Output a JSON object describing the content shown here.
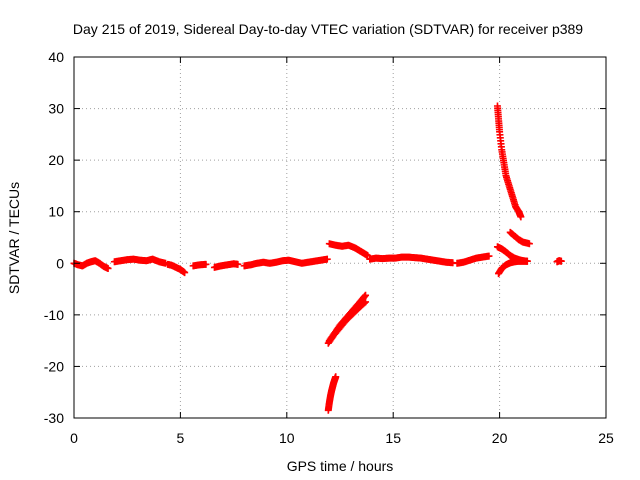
{
  "chart_data": {
    "type": "scatter",
    "title": "Day 215 of 2019, Sidereal Day-to-day VTEC variation (SDTVAR) for receiver p389",
    "xlabel": "GPS time / hours",
    "ylabel": "SDTVAR / TECUs",
    "xlim": [
      0,
      25
    ],
    "ylim": [
      -30,
      40
    ],
    "x_ticks": [
      0,
      5,
      10,
      15,
      20,
      25
    ],
    "y_ticks": [
      -30,
      -20,
      -10,
      0,
      10,
      20,
      30,
      40
    ],
    "grid": true,
    "marker": "+",
    "marker_color": "#ff0000",
    "series": [
      {
        "name": "SDTVAR",
        "segments": [
          {
            "x": [
              0.0,
              0.2,
              0.4,
              0.6,
              0.8,
              1.0,
              1.2,
              1.4,
              1.6
            ],
            "y": [
              0.0,
              -0.3,
              -0.5,
              0.0,
              0.3,
              0.5,
              0.0,
              -0.6,
              -1.0
            ]
          },
          {
            "x": [
              1.9,
              2.2,
              2.5,
              2.8,
              3.1,
              3.4,
              3.7,
              4.0,
              4.3
            ],
            "y": [
              0.3,
              0.5,
              0.7,
              0.8,
              0.6,
              0.5,
              0.8,
              0.3,
              0.0
            ]
          },
          {
            "x": [
              4.4,
              4.6,
              4.8,
              5.0,
              5.2
            ],
            "y": [
              -0.2,
              -0.4,
              -0.8,
              -1.2,
              -1.8
            ]
          },
          {
            "x": [
              5.6,
              5.9,
              6.2
            ],
            "y": [
              -0.5,
              -0.3,
              -0.2
            ]
          },
          {
            "x": [
              6.6,
              6.9,
              7.2,
              7.5,
              7.7
            ],
            "y": [
              -0.8,
              -0.5,
              -0.3,
              -0.1,
              -0.2
            ]
          },
          {
            "x": [
              8.0,
              8.3,
              8.6,
              8.9,
              9.2,
              9.5,
              9.8,
              10.1,
              10.4,
              10.7,
              11.0,
              11.3,
              11.6,
              11.9
            ],
            "y": [
              -0.5,
              -0.3,
              0.0,
              0.2,
              0.0,
              0.2,
              0.5,
              0.6,
              0.3,
              0.0,
              0.2,
              0.4,
              0.6,
              0.8
            ]
          },
          {
            "x": [
              12.0,
              12.3,
              12.6,
              12.9,
              13.2,
              13.4,
              13.6,
              13.8
            ],
            "y": [
              3.8,
              3.5,
              3.3,
              3.5,
              3.0,
              2.5,
              2.0,
              1.5
            ]
          },
          {
            "x": [
              13.9,
              14.2,
              14.5,
              14.8,
              15.1,
              15.4,
              15.7,
              16.0,
              16.3,
              16.6,
              16.9,
              17.2,
              17.5,
              17.8
            ],
            "y": [
              0.8,
              1.0,
              0.9,
              1.0,
              1.0,
              1.2,
              1.2,
              1.1,
              1.0,
              0.8,
              0.6,
              0.4,
              0.2,
              0.1
            ]
          },
          {
            "x": [
              18.0,
              18.3,
              18.6,
              18.9,
              19.2,
              19.5
            ],
            "y": [
              0.0,
              0.2,
              0.6,
              1.0,
              1.2,
              1.4
            ]
          },
          {
            "x": [
              11.95,
              12.2,
              12.5,
              12.8,
              13.1,
              13.4,
              13.7
            ],
            "y": [
              -15.5,
              -14.0,
              -12.5,
              -11.0,
              -9.8,
              -8.6,
              -7.5
            ]
          },
          {
            "x": [
              12.0,
              12.25,
              12.5,
              12.75,
              13.0,
              13.25,
              13.5,
              13.7
            ],
            "y": [
              -15.0,
              -13.5,
              -12.0,
              -10.8,
              -9.6,
              -8.4,
              -7.2,
              -6.2
            ]
          },
          {
            "x": [
              11.95,
              12.0,
              12.05,
              12.1,
              12.15,
              12.2,
              12.25,
              12.3
            ],
            "y": [
              -28.5,
              -27.0,
              -25.8,
              -24.8,
              -24.0,
              -23.2,
              -22.6,
              -22.0
            ]
          },
          {
            "x": [
              19.9,
              19.95,
              20.0,
              20.1,
              20.2,
              20.3,
              20.45,
              20.6,
              20.75,
              20.9,
              21.0
            ],
            "y": [
              30.5,
              28.0,
              25.5,
              22.0,
              19.5,
              17.0,
              15.0,
              13.0,
              11.0,
              10.0,
              9.0
            ]
          },
          {
            "x": [
              19.9,
              20.1,
              20.3,
              20.5,
              20.7,
              20.9,
              21.1,
              21.3
            ],
            "y": [
              3.2,
              2.8,
              2.2,
              1.5,
              1.0,
              0.7,
              0.5,
              0.4
            ]
          },
          {
            "x": [
              20.5,
              20.7,
              20.9,
              21.1,
              21.4
            ],
            "y": [
              6.0,
              5.3,
              4.6,
              4.1,
              3.8
            ]
          },
          {
            "x": [
              19.95,
              20.1,
              20.3,
              20.5,
              20.7,
              20.9,
              21.1,
              21.3
            ],
            "y": [
              -2.0,
              -1.0,
              -0.3,
              0.1,
              0.3,
              0.4,
              0.4,
              0.4
            ]
          },
          {
            "x": [
              22.7,
              22.8,
              22.9
            ],
            "y": [
              0.3,
              0.5,
              0.4
            ]
          }
        ]
      }
    ]
  }
}
